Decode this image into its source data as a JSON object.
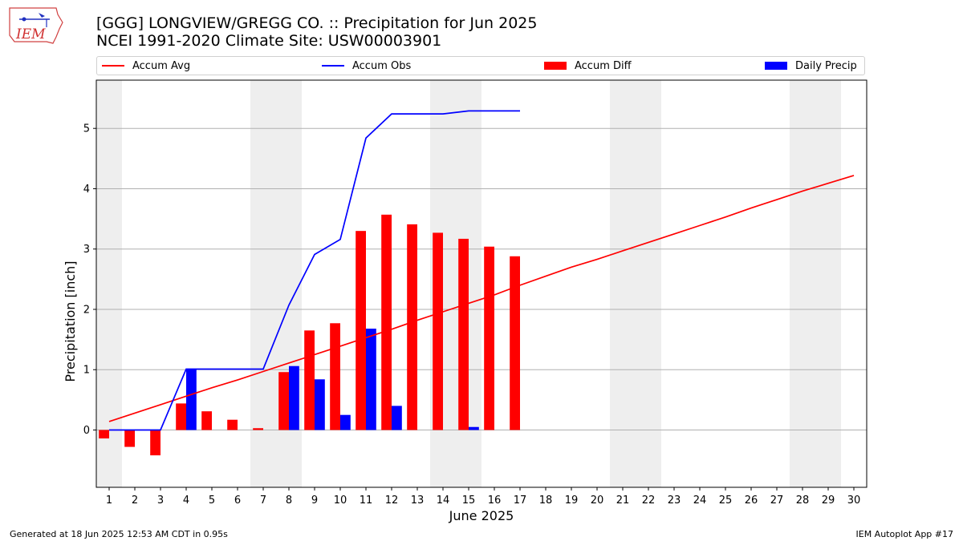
{
  "header": {
    "title_line1": "[GGG] LONGVIEW/GREGG CO. :: Precipitation for Jun 2025",
    "title_line2": "NCEI 1991-2020 Climate Site: USW00003901"
  },
  "logo": {
    "text": "IEM"
  },
  "footer": {
    "left": "Generated at 18 Jun 2025 12:53 AM CDT in 0.95s",
    "right": "IEM Autoplot App #17"
  },
  "colors": {
    "accum_avg": "#ff0000",
    "accum_obs": "#0000ff",
    "accum_diff": "#ff0000",
    "daily_precip": "#0000ff",
    "weekend_band": "#eeeeee",
    "grid": "#b0b0b0"
  },
  "chart_data": {
    "type": "bar",
    "xlabel": "June 2025",
    "ylabel": "Precipitation [inch]",
    "xlim": [
      0.5,
      30.5
    ],
    "ylim": [
      -0.95,
      5.8
    ],
    "yticks": [
      0,
      1,
      2,
      3,
      4,
      5
    ],
    "xticks": [
      1,
      2,
      3,
      4,
      5,
      6,
      7,
      8,
      9,
      10,
      11,
      12,
      13,
      14,
      15,
      16,
      17,
      18,
      19,
      20,
      21,
      22,
      23,
      24,
      25,
      26,
      27,
      28,
      29,
      30
    ],
    "grid": "horizontal",
    "legend_position": "top",
    "shaded_weekends": [
      [
        0.5,
        1.5
      ],
      [
        6.5,
        8.5
      ],
      [
        13.5,
        15.5
      ],
      [
        20.5,
        22.5
      ],
      [
        27.5,
        29.5
      ]
    ],
    "series": [
      {
        "name": "Accum Avg",
        "kind": "line",
        "x": [
          1,
          2,
          3,
          4,
          5,
          6,
          7,
          8,
          9,
          10,
          11,
          12,
          13,
          14,
          15,
          16,
          17,
          18,
          19,
          20,
          21,
          22,
          23,
          24,
          25,
          26,
          27,
          28,
          29,
          30
        ],
        "values": [
          0.14,
          0.28,
          0.42,
          0.56,
          0.7,
          0.83,
          0.97,
          1.11,
          1.25,
          1.39,
          1.53,
          1.67,
          1.82,
          1.96,
          2.1,
          2.24,
          2.4,
          2.55,
          2.7,
          2.83,
          2.97,
          3.11,
          3.25,
          3.39,
          3.53,
          3.68,
          3.82,
          3.96,
          4.09,
          4.22
        ]
      },
      {
        "name": "Accum Obs",
        "kind": "line",
        "x": [
          1,
          2,
          3,
          4,
          5,
          6,
          7,
          8,
          9,
          10,
          11,
          12,
          13,
          14,
          15,
          16,
          17
        ],
        "values": [
          0.0,
          0.0,
          0.0,
          1.01,
          1.01,
          1.01,
          1.01,
          2.07,
          2.91,
          3.16,
          4.84,
          5.24,
          5.24,
          5.24,
          5.29,
          5.29,
          5.29
        ]
      },
      {
        "name": "Accum Diff",
        "kind": "bar",
        "x": [
          1,
          2,
          3,
          4,
          5,
          6,
          7,
          8,
          9,
          10,
          11,
          12,
          13,
          14,
          15,
          16,
          17
        ],
        "values": [
          -0.14,
          -0.28,
          -0.42,
          0.44,
          0.31,
          0.17,
          0.03,
          0.96,
          1.65,
          1.77,
          3.3,
          3.57,
          3.41,
          3.27,
          3.17,
          3.04,
          2.88
        ]
      },
      {
        "name": "Daily Precip",
        "kind": "bar",
        "x": [
          1,
          2,
          3,
          4,
          5,
          6,
          7,
          8,
          9,
          10,
          11,
          12,
          13,
          14,
          15,
          16,
          17
        ],
        "values": [
          0,
          0,
          0,
          1.01,
          0,
          0,
          0,
          1.06,
          0.84,
          0.25,
          1.68,
          0.4,
          0,
          0,
          0.05,
          0,
          0
        ]
      }
    ]
  }
}
